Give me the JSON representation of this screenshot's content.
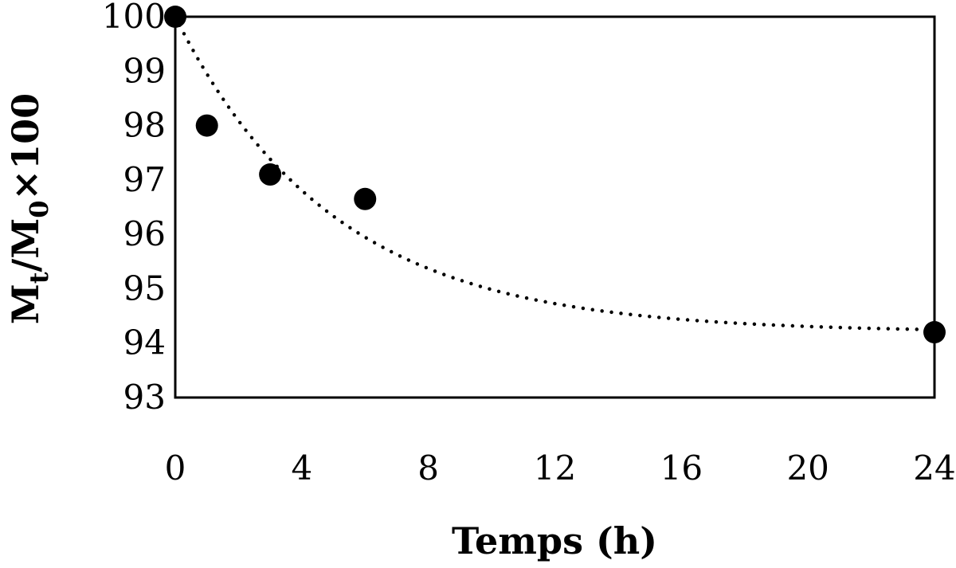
{
  "chart_data": {
    "type": "scatter",
    "title": "",
    "xlabel": "Temps (h)",
    "ylabel": {
      "main": "M",
      "sub_t": "t",
      "slash": "/M",
      "sub_0": "0",
      "tail": "×100"
    },
    "xlim": [
      0,
      24
    ],
    "ylim": [
      93,
      100
    ],
    "xticks": [
      "0",
      "4",
      "8",
      "12",
      "16",
      "20",
      "24"
    ],
    "yticks": [
      "93",
      "94",
      "95",
      "96",
      "97",
      "98",
      "99",
      "100"
    ],
    "grid": false,
    "legend": "none",
    "series": [
      {
        "marker": "filled-circle",
        "color": "#000000",
        "points": [
          {
            "x": 0,
            "y": 100
          },
          {
            "x": 1,
            "y": 98.0
          },
          {
            "x": 3,
            "y": 97.1
          },
          {
            "x": 6,
            "y": 96.65
          },
          {
            "x": 24,
            "y": 94.2
          }
        ]
      }
    ],
    "trendline": {
      "style": "dotted",
      "color": "#000000",
      "model": "exponential-decay",
      "equation": {
        "plateau": 94.2,
        "amplitude": 5.8,
        "rate": 0.2
      }
    }
  }
}
